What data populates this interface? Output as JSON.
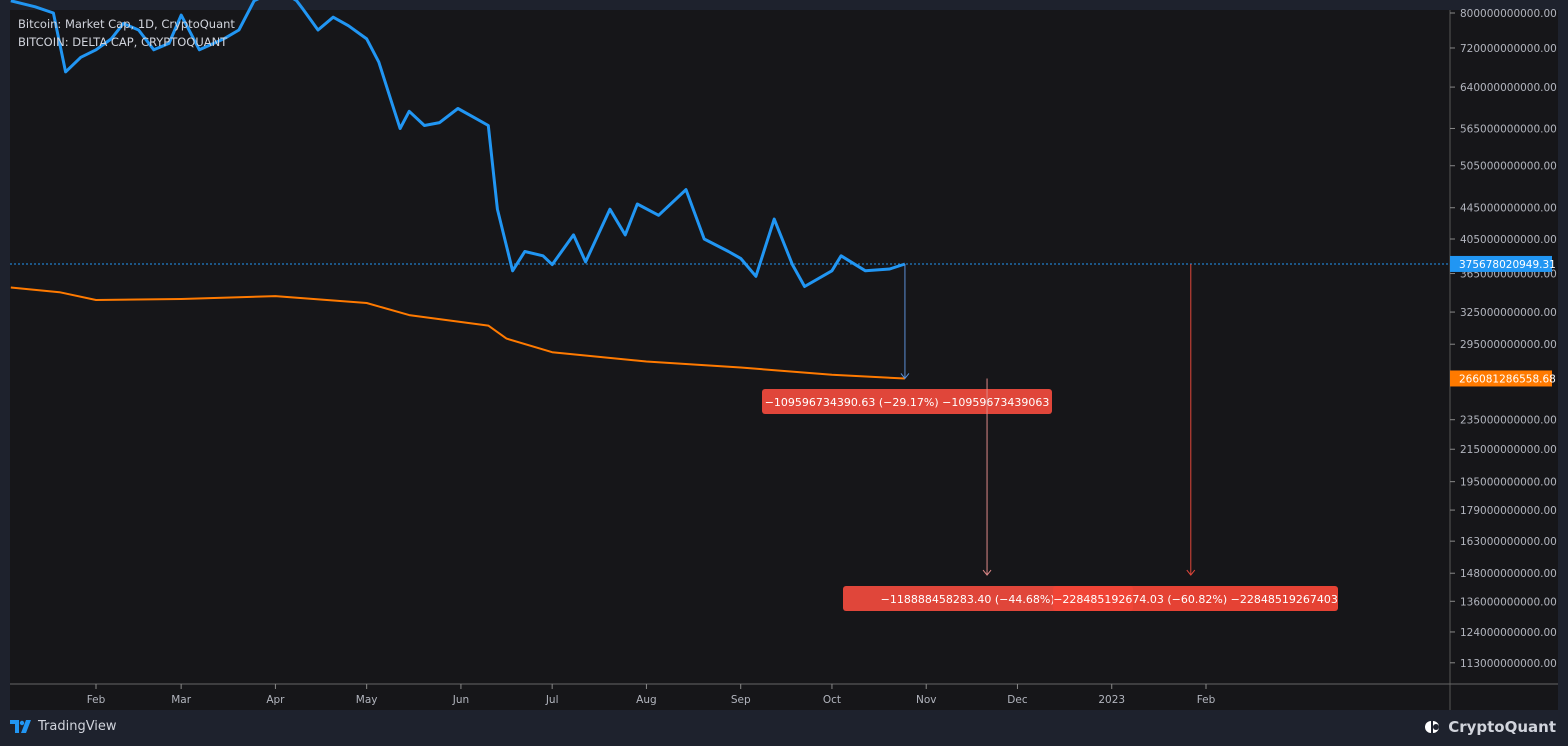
{
  "legend": [
    "Bitcoin: Market Cap, 1D, CryptoQuant",
    "BITCOIN: DELTA CAP, CRYPTOQUANT"
  ],
  "footer": {
    "left_brand": "TradingView",
    "right_brand": "CryptoQuant"
  },
  "colors": {
    "market_cap": "#2196f3",
    "delta_cap": "#ff7a00",
    "measure": "#e0463a",
    "background": "#161619",
    "frame": "#1e222d"
  },
  "chart_data": {
    "type": "line",
    "y_scale": "log",
    "ylim": [
      108000000000,
      820000000000
    ],
    "x_range": [
      "2022-01-04",
      "2023-04-30"
    ],
    "grid": false,
    "y_ticks": [
      "800000000000.00",
      "720000000000.00",
      "640000000000.00",
      "565000000000.00",
      "505000000000.00",
      "445000000000.00",
      "405000000000.00",
      "365000000000.00",
      "325000000000.00",
      "295000000000.00",
      "235000000000.00",
      "215000000000.00",
      "195000000000.00",
      "179000000000.00",
      "163000000000.00",
      "148000000000.00",
      "136000000000.00",
      "124000000000.00",
      "113000000000.00"
    ],
    "x_ticks": [
      {
        "label": "Feb",
        "date": "2022-02-01"
      },
      {
        "label": "Mar",
        "date": "2022-03-01"
      },
      {
        "label": "Apr",
        "date": "2022-04-01"
      },
      {
        "label": "May",
        "date": "2022-05-01"
      },
      {
        "label": "Jun",
        "date": "2022-06-01"
      },
      {
        "label": "Jul",
        "date": "2022-07-01"
      },
      {
        "label": "Aug",
        "date": "2022-08-01"
      },
      {
        "label": "Sep",
        "date": "2022-09-01"
      },
      {
        "label": "Oct",
        "date": "2022-10-01"
      },
      {
        "label": "Nov",
        "date": "2022-11-01"
      },
      {
        "label": "Dec",
        "date": "2022-12-01"
      },
      {
        "label": "2023",
        "date": "2023-01-01"
      },
      {
        "label": "Feb",
        "date": "2023-02-01"
      }
    ],
    "series": [
      {
        "name": "Bitcoin: Market Cap, 1D, CryptoQuant",
        "last_label": "375678020949.31",
        "points": [
          [
            "2022-01-04",
            830
          ],
          [
            "2022-01-12",
            815
          ],
          [
            "2022-01-18",
            800
          ],
          [
            "2022-01-22",
            670
          ],
          [
            "2022-01-27",
            700
          ],
          [
            "2022-02-01",
            716
          ],
          [
            "2022-02-06",
            740
          ],
          [
            "2022-02-10",
            775
          ],
          [
            "2022-02-15",
            760
          ],
          [
            "2022-02-20",
            716
          ],
          [
            "2022-02-25",
            730
          ],
          [
            "2022-03-01",
            795
          ],
          [
            "2022-03-07",
            716
          ],
          [
            "2022-03-15",
            740
          ],
          [
            "2022-03-20",
            760
          ],
          [
            "2022-03-25",
            830
          ],
          [
            "2022-04-02",
            860
          ],
          [
            "2022-04-08",
            830
          ],
          [
            "2022-04-10",
            810
          ],
          [
            "2022-04-15",
            760
          ],
          [
            "2022-04-20",
            790
          ],
          [
            "2022-04-25",
            770
          ],
          [
            "2022-05-01",
            740
          ],
          [
            "2022-05-05",
            690
          ],
          [
            "2022-05-09",
            615
          ],
          [
            "2022-05-12",
            565
          ],
          [
            "2022-05-15",
            595
          ],
          [
            "2022-05-20",
            570
          ],
          [
            "2022-05-25",
            575
          ],
          [
            "2022-05-31",
            600
          ],
          [
            "2022-06-05",
            585
          ],
          [
            "2022-06-10",
            570
          ],
          [
            "2022-06-13",
            443
          ],
          [
            "2022-06-18",
            368
          ],
          [
            "2022-06-22",
            390
          ],
          [
            "2022-06-28",
            385
          ],
          [
            "2022-07-01",
            375
          ],
          [
            "2022-07-08",
            410
          ],
          [
            "2022-07-12",
            378
          ],
          [
            "2022-07-20",
            443
          ],
          [
            "2022-07-25",
            410
          ],
          [
            "2022-07-29",
            450
          ],
          [
            "2022-08-05",
            435
          ],
          [
            "2022-08-14",
            470
          ],
          [
            "2022-08-20",
            405
          ],
          [
            "2022-08-28",
            390
          ],
          [
            "2022-09-01",
            382
          ],
          [
            "2022-09-06",
            362
          ],
          [
            "2022-09-12",
            430
          ],
          [
            "2022-09-18",
            375
          ],
          [
            "2022-09-22",
            351
          ],
          [
            "2022-10-01",
            368
          ],
          [
            "2022-10-04",
            385
          ],
          [
            "2022-10-12",
            368
          ],
          [
            "2022-10-20",
            370
          ],
          [
            "2022-10-25",
            375.68
          ]
        ]
      },
      {
        "name": "BITCOIN: DELTA CAP, CRYPTOQUANT",
        "last_label": "266081286558.68",
        "points": [
          [
            "2022-01-04",
            350
          ],
          [
            "2022-01-20",
            345
          ],
          [
            "2022-02-01",
            337
          ],
          [
            "2022-03-01",
            338
          ],
          [
            "2022-04-01",
            341
          ],
          [
            "2022-05-01",
            334
          ],
          [
            "2022-05-15",
            322
          ],
          [
            "2022-06-10",
            312
          ],
          [
            "2022-06-16",
            300
          ],
          [
            "2022-07-01",
            288
          ],
          [
            "2022-08-01",
            280
          ],
          [
            "2022-09-01",
            275
          ],
          [
            "2022-10-01",
            269
          ],
          [
            "2022-10-25",
            266.08
          ]
        ]
      }
    ],
    "annotations": [
      {
        "text": "−109596734390.63 (−29.17%) −10959673439063",
        "from": [
          "2022-10-25",
          375.68
        ],
        "to": [
          "2022-10-25",
          266.08
        ]
      },
      {
        "text": "−118888458283.40 (−44.68%) −1188",
        "from": [
          "2022-11-21",
          266.08
        ],
        "to": [
          "2022-11-21",
          147.2
        ]
      },
      {
        "text": "−228485192674.03 (−60.82%) −22848519267403",
        "from": [
          "2023-01-27",
          375.68
        ],
        "to": [
          "2023-01-27",
          147.2
        ]
      }
    ]
  }
}
